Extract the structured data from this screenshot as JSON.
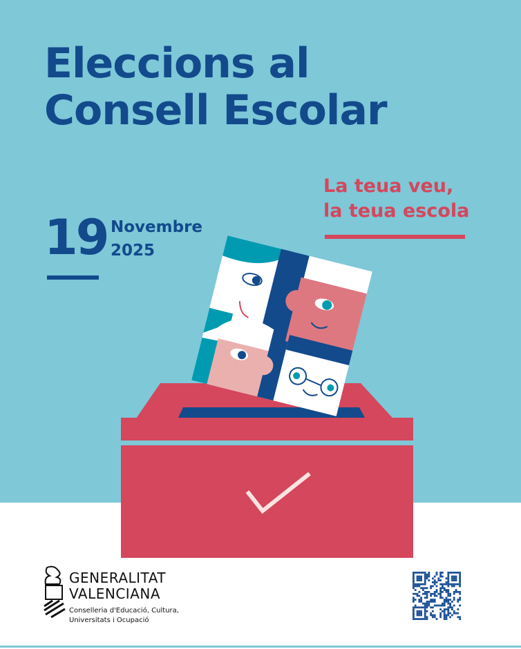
{
  "poster": {
    "title_line1": "Eleccions al",
    "title_line2": "Consell Escolar",
    "slogan_line1": "La teua veu,",
    "slogan_line2": "la teua escola",
    "day": "19",
    "month": "Novembre",
    "year": "2025"
  },
  "footer": {
    "org_line1": "GENERALITAT",
    "org_line2": "VALENCIANA",
    "dept_line1": "Conselleria d'Educació, Cultura,",
    "dept_line2": "Universitats i Ocupació"
  },
  "colors": {
    "sky": "#7ec8d8",
    "navy": "#124a8c",
    "red": "#d4475c",
    "teal": "#009bb0",
    "pink": "#dd7880",
    "light_pink": "#eab0ae"
  },
  "icons": [
    "ballot-box-icon",
    "checkmark-icon",
    "generalitat-logo",
    "qr-code"
  ]
}
